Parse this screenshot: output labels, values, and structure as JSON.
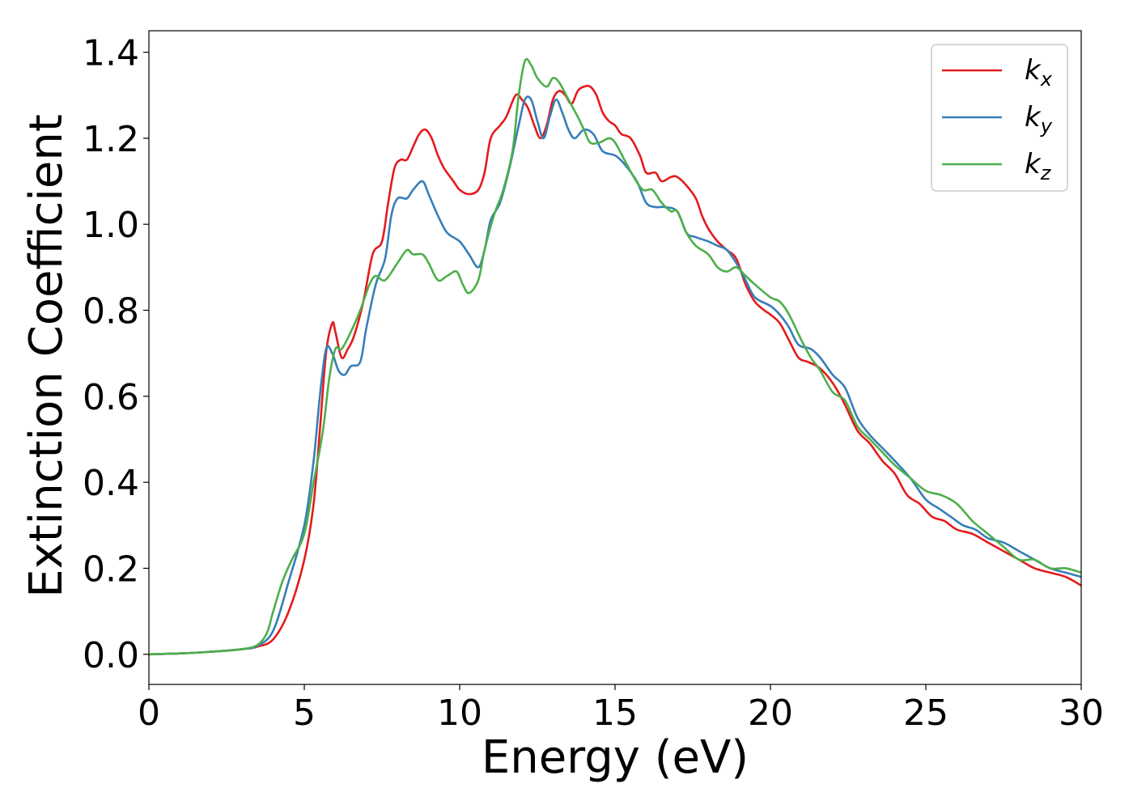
{
  "chart_data": {
    "type": "line",
    "title": "",
    "xlabel": "Energy (eV)",
    "ylabel": "Extinction Coefficient",
    "xlim": [
      0,
      30
    ],
    "ylim": [
      -0.07,
      1.45
    ],
    "xticks": [
      0,
      5,
      10,
      15,
      20,
      25,
      30
    ],
    "xtick_labels": [
      "0",
      "5",
      "10",
      "15",
      "20",
      "25",
      "30"
    ],
    "yticks": [
      0.0,
      0.2,
      0.4,
      0.6,
      0.8,
      1.0,
      1.2,
      1.4
    ],
    "ytick_labels": [
      "0.0",
      "0.2",
      "0.4",
      "0.6",
      "0.8",
      "1.0",
      "1.2",
      "1.4"
    ],
    "grid": false,
    "legend_position": "top-right",
    "series": [
      {
        "name": "k_x",
        "label_base": "k",
        "label_sub": "x",
        "color": "#e41a1c",
        "points": [
          [
            0,
            0.0
          ],
          [
            1,
            0.002
          ],
          [
            2,
            0.006
          ],
          [
            3,
            0.012
          ],
          [
            3.5,
            0.018
          ],
          [
            4,
            0.035
          ],
          [
            4.5,
            0.1
          ],
          [
            5,
            0.22
          ],
          [
            5.3,
            0.35
          ],
          [
            5.5,
            0.52
          ],
          [
            5.7,
            0.7
          ],
          [
            5.9,
            0.77
          ],
          [
            6,
            0.75
          ],
          [
            6.2,
            0.69
          ],
          [
            6.4,
            0.71
          ],
          [
            6.6,
            0.74
          ],
          [
            6.9,
            0.82
          ],
          [
            7.2,
            0.93
          ],
          [
            7.5,
            0.96
          ],
          [
            7.7,
            1.05
          ],
          [
            7.9,
            1.13
          ],
          [
            8.1,
            1.15
          ],
          [
            8.3,
            1.15
          ],
          [
            8.5,
            1.18
          ],
          [
            8.7,
            1.21
          ],
          [
            8.9,
            1.22
          ],
          [
            9.1,
            1.2
          ],
          [
            9.3,
            1.16
          ],
          [
            9.5,
            1.13
          ],
          [
            9.8,
            1.1
          ],
          [
            10,
            1.08
          ],
          [
            10.3,
            1.07
          ],
          [
            10.6,
            1.08
          ],
          [
            10.8,
            1.12
          ],
          [
            11,
            1.2
          ],
          [
            11.3,
            1.23
          ],
          [
            11.5,
            1.25
          ],
          [
            11.8,
            1.3
          ],
          [
            12,
            1.29
          ],
          [
            12.2,
            1.27
          ],
          [
            12.4,
            1.23
          ],
          [
            12.6,
            1.2
          ],
          [
            12.8,
            1.23
          ],
          [
            13,
            1.29
          ],
          [
            13.2,
            1.31
          ],
          [
            13.4,
            1.3
          ],
          [
            13.6,
            1.28
          ],
          [
            13.8,
            1.31
          ],
          [
            14,
            1.32
          ],
          [
            14.2,
            1.32
          ],
          [
            14.4,
            1.3
          ],
          [
            14.6,
            1.26
          ],
          [
            14.8,
            1.24
          ],
          [
            15,
            1.23
          ],
          [
            15.2,
            1.21
          ],
          [
            15.5,
            1.2
          ],
          [
            15.8,
            1.16
          ],
          [
            16,
            1.12
          ],
          [
            16.3,
            1.12
          ],
          [
            16.5,
            1.1
          ],
          [
            16.8,
            1.11
          ],
          [
            17,
            1.11
          ],
          [
            17.3,
            1.09
          ],
          [
            17.6,
            1.06
          ],
          [
            17.8,
            1.02
          ],
          [
            18,
            0.99
          ],
          [
            18.3,
            0.96
          ],
          [
            18.6,
            0.94
          ],
          [
            18.9,
            0.92
          ],
          [
            19.2,
            0.86
          ],
          [
            19.5,
            0.82
          ],
          [
            19.8,
            0.8
          ],
          [
            20,
            0.79
          ],
          [
            20.3,
            0.77
          ],
          [
            20.6,
            0.73
          ],
          [
            20.9,
            0.69
          ],
          [
            21.2,
            0.68
          ],
          [
            21.5,
            0.67
          ],
          [
            21.8,
            0.65
          ],
          [
            22.1,
            0.62
          ],
          [
            22.4,
            0.58
          ],
          [
            22.8,
            0.52
          ],
          [
            23.2,
            0.49
          ],
          [
            23.6,
            0.45
          ],
          [
            24,
            0.42
          ],
          [
            24.4,
            0.37
          ],
          [
            24.8,
            0.35
          ],
          [
            25.2,
            0.32
          ],
          [
            25.6,
            0.31
          ],
          [
            26,
            0.29
          ],
          [
            26.5,
            0.28
          ],
          [
            27,
            0.26
          ],
          [
            27.5,
            0.24
          ],
          [
            28,
            0.22
          ],
          [
            28.5,
            0.2
          ],
          [
            29,
            0.19
          ],
          [
            29.5,
            0.18
          ],
          [
            30,
            0.16
          ]
        ]
      },
      {
        "name": "k_y",
        "label_base": "k",
        "label_sub": "y",
        "color": "#377eb8",
        "points": [
          [
            0,
            0.0
          ],
          [
            1,
            0.002
          ],
          [
            2,
            0.006
          ],
          [
            3,
            0.012
          ],
          [
            3.5,
            0.02
          ],
          [
            4,
            0.055
          ],
          [
            4.5,
            0.17
          ],
          [
            5,
            0.3
          ],
          [
            5.3,
            0.45
          ],
          [
            5.5,
            0.6
          ],
          [
            5.7,
            0.71
          ],
          [
            5.9,
            0.7
          ],
          [
            6.1,
            0.66
          ],
          [
            6.3,
            0.65
          ],
          [
            6.5,
            0.67
          ],
          [
            6.8,
            0.68
          ],
          [
            7,
            0.76
          ],
          [
            7.3,
            0.86
          ],
          [
            7.6,
            0.92
          ],
          [
            7.8,
            1.02
          ],
          [
            8,
            1.06
          ],
          [
            8.3,
            1.06
          ],
          [
            8.5,
            1.08
          ],
          [
            8.8,
            1.1
          ],
          [
            9,
            1.07
          ],
          [
            9.3,
            1.02
          ],
          [
            9.6,
            0.98
          ],
          [
            10,
            0.96
          ],
          [
            10.3,
            0.93
          ],
          [
            10.6,
            0.9
          ],
          [
            10.8,
            0.94
          ],
          [
            11,
            1.01
          ],
          [
            11.3,
            1.05
          ],
          [
            11.6,
            1.13
          ],
          [
            11.9,
            1.23
          ],
          [
            12.1,
            1.29
          ],
          [
            12.3,
            1.29
          ],
          [
            12.5,
            1.24
          ],
          [
            12.7,
            1.2
          ],
          [
            12.9,
            1.25
          ],
          [
            13.1,
            1.29
          ],
          [
            13.3,
            1.26
          ],
          [
            13.5,
            1.22
          ],
          [
            13.7,
            1.2
          ],
          [
            14,
            1.22
          ],
          [
            14.3,
            1.21
          ],
          [
            14.6,
            1.17
          ],
          [
            15,
            1.16
          ],
          [
            15.3,
            1.14
          ],
          [
            15.7,
            1.1
          ],
          [
            16,
            1.05
          ],
          [
            16.3,
            1.04
          ],
          [
            16.6,
            1.04
          ],
          [
            17,
            1.03
          ],
          [
            17.3,
            0.98
          ],
          [
            17.6,
            0.97
          ],
          [
            18,
            0.96
          ],
          [
            18.3,
            0.95
          ],
          [
            18.6,
            0.94
          ],
          [
            18.9,
            0.91
          ],
          [
            19.2,
            0.87
          ],
          [
            19.5,
            0.83
          ],
          [
            20,
            0.81
          ],
          [
            20.3,
            0.79
          ],
          [
            20.6,
            0.76
          ],
          [
            20.9,
            0.72
          ],
          [
            21.3,
            0.71
          ],
          [
            21.6,
            0.69
          ],
          [
            22,
            0.65
          ],
          [
            22.4,
            0.62
          ],
          [
            22.8,
            0.55
          ],
          [
            23.2,
            0.51
          ],
          [
            23.6,
            0.48
          ],
          [
            24,
            0.45
          ],
          [
            24.5,
            0.41
          ],
          [
            25,
            0.36
          ],
          [
            25.4,
            0.34
          ],
          [
            25.8,
            0.32
          ],
          [
            26.2,
            0.3
          ],
          [
            26.6,
            0.29
          ],
          [
            27,
            0.27
          ],
          [
            27.5,
            0.26
          ],
          [
            28,
            0.24
          ],
          [
            28.5,
            0.22
          ],
          [
            29,
            0.2
          ],
          [
            29.5,
            0.19
          ],
          [
            30,
            0.18
          ]
        ]
      },
      {
        "name": "k_z",
        "label_base": "k",
        "label_sub": "z",
        "color": "#4daf4a",
        "points": [
          [
            0,
            0.0
          ],
          [
            1,
            0.002
          ],
          [
            2,
            0.006
          ],
          [
            3,
            0.012
          ],
          [
            3.5,
            0.022
          ],
          [
            3.8,
            0.05
          ],
          [
            4,
            0.1
          ],
          [
            4.3,
            0.17
          ],
          [
            4.6,
            0.22
          ],
          [
            5,
            0.28
          ],
          [
            5.3,
            0.4
          ],
          [
            5.6,
            0.52
          ],
          [
            5.8,
            0.64
          ],
          [
            6,
            0.71
          ],
          [
            6.2,
            0.71
          ],
          [
            6.5,
            0.75
          ],
          [
            6.8,
            0.8
          ],
          [
            7.1,
            0.86
          ],
          [
            7.3,
            0.88
          ],
          [
            7.6,
            0.87
          ],
          [
            8,
            0.91
          ],
          [
            8.3,
            0.94
          ],
          [
            8.5,
            0.93
          ],
          [
            8.8,
            0.93
          ],
          [
            9,
            0.91
          ],
          [
            9.3,
            0.87
          ],
          [
            9.6,
            0.88
          ],
          [
            9.9,
            0.89
          ],
          [
            10.1,
            0.86
          ],
          [
            10.3,
            0.84
          ],
          [
            10.6,
            0.87
          ],
          [
            10.8,
            0.94
          ],
          [
            11.1,
            1.02
          ],
          [
            11.4,
            1.08
          ],
          [
            11.7,
            1.17
          ],
          [
            11.9,
            1.3
          ],
          [
            12.1,
            1.38
          ],
          [
            12.3,
            1.37
          ],
          [
            12.5,
            1.34
          ],
          [
            12.8,
            1.32
          ],
          [
            13,
            1.34
          ],
          [
            13.2,
            1.33
          ],
          [
            13.5,
            1.29
          ],
          [
            13.8,
            1.25
          ],
          [
            14,
            1.22
          ],
          [
            14.2,
            1.19
          ],
          [
            14.5,
            1.19
          ],
          [
            14.8,
            1.2
          ],
          [
            15,
            1.19
          ],
          [
            15.3,
            1.15
          ],
          [
            15.6,
            1.11
          ],
          [
            15.9,
            1.08
          ],
          [
            16.2,
            1.08
          ],
          [
            16.5,
            1.05
          ],
          [
            16.8,
            1.03
          ],
          [
            17,
            1.03
          ],
          [
            17.3,
            0.98
          ],
          [
            17.6,
            0.95
          ],
          [
            18,
            0.93
          ],
          [
            18.3,
            0.9
          ],
          [
            18.6,
            0.89
          ],
          [
            18.9,
            0.9
          ],
          [
            19.2,
            0.88
          ],
          [
            19.5,
            0.86
          ],
          [
            20,
            0.83
          ],
          [
            20.3,
            0.82
          ],
          [
            20.6,
            0.79
          ],
          [
            21,
            0.73
          ],
          [
            21.3,
            0.69
          ],
          [
            21.6,
            0.66
          ],
          [
            22,
            0.61
          ],
          [
            22.4,
            0.59
          ],
          [
            22.8,
            0.53
          ],
          [
            23.2,
            0.5
          ],
          [
            23.6,
            0.47
          ],
          [
            24,
            0.44
          ],
          [
            24.5,
            0.41
          ],
          [
            25,
            0.38
          ],
          [
            25.5,
            0.37
          ],
          [
            26,
            0.35
          ],
          [
            26.5,
            0.31
          ],
          [
            27,
            0.28
          ],
          [
            27.5,
            0.25
          ],
          [
            28,
            0.22
          ],
          [
            28.5,
            0.22
          ],
          [
            29,
            0.2
          ],
          [
            29.5,
            0.2
          ],
          [
            30,
            0.19
          ]
        ]
      }
    ]
  }
}
